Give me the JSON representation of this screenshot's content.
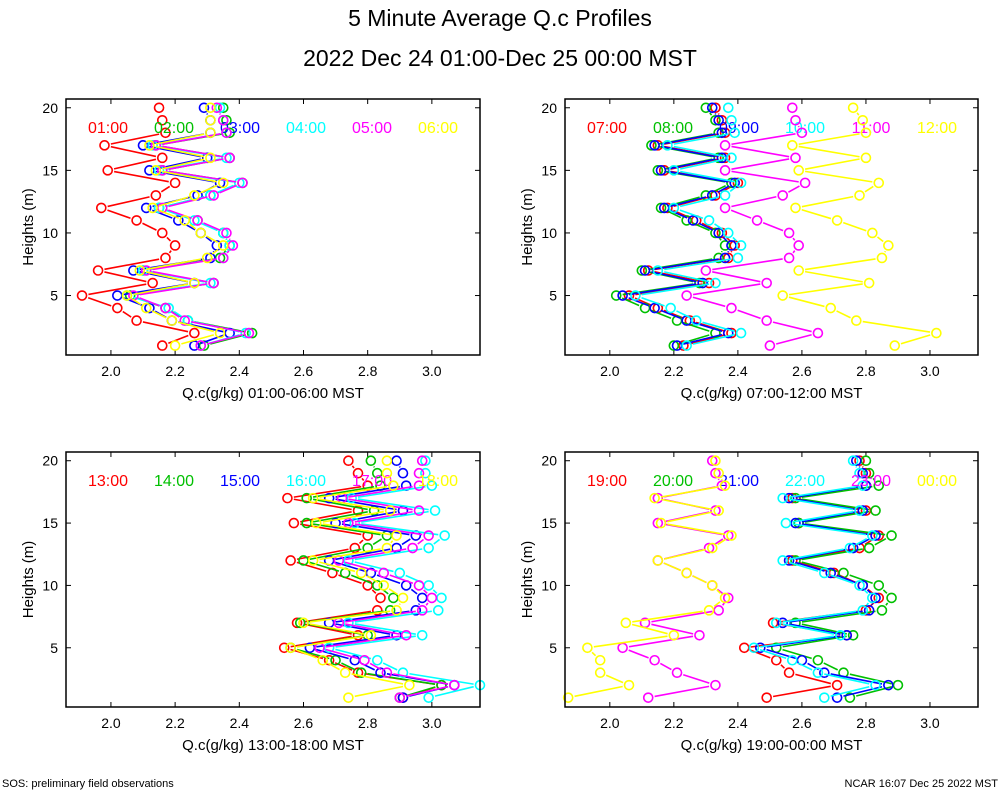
{
  "title": "5 Minute Average Q.c Profiles",
  "subtitle": "2022 Dec 24 01:00-Dec 25 00:00 MST",
  "footer": {
    "left": "SOS: preliminary field observations",
    "right": "NCAR 16:07 Dec 25 2022 MST"
  },
  "colors": [
    "#ff0000",
    "#00c000",
    "#0000ff",
    "#00ffff",
    "#ff00ff",
    "#ffff00"
  ],
  "chart_data": [
    {
      "type": "line",
      "xlabel": "Q.c(g/kg) 01:00-06:00 MST",
      "ylabel": "Heights (m)",
      "xlim": [
        1.86,
        3.15
      ],
      "ylim": [
        0.25,
        20.7
      ],
      "xticks": [
        "2.0",
        "2.2",
        "2.4",
        "2.6",
        "2.8",
        "3.0"
      ],
      "yticks": [
        "5",
        "10",
        "15",
        "20"
      ],
      "grid": false,
      "legend": "top",
      "heights": [
        1,
        2,
        3,
        4,
        5,
        6,
        7,
        8,
        9,
        10,
        11,
        12,
        13,
        14,
        15,
        16,
        17,
        18,
        19,
        20
      ],
      "series": [
        {
          "name": "01:00",
          "values": [
            2.16,
            2.26,
            2.08,
            2.02,
            1.91,
            2.13,
            1.96,
            2.17,
            2.2,
            2.16,
            2.08,
            1.97,
            2.14,
            2.2,
            1.99,
            2.16,
            1.98,
            2.17,
            2.16,
            2.15
          ]
        },
        {
          "name": "02:00",
          "values": [
            2.29,
            2.44,
            2.24,
            2.17,
            2.06,
            2.32,
            2.1,
            2.34,
            2.37,
            2.35,
            2.27,
            2.15,
            2.31,
            2.41,
            2.16,
            2.37,
            2.14,
            2.37,
            2.36,
            2.35
          ]
        },
        {
          "name": "03:00",
          "values": [
            2.26,
            2.37,
            2.19,
            2.12,
            2.02,
            2.26,
            2.07,
            2.31,
            2.33,
            2.28,
            2.21,
            2.11,
            2.27,
            2.34,
            2.12,
            2.3,
            2.1,
            2.31,
            2.31,
            2.29
          ]
        },
        {
          "name": "04:00",
          "values": [
            2.28,
            2.42,
            2.24,
            2.18,
            2.05,
            2.31,
            2.1,
            2.35,
            2.37,
            2.35,
            2.26,
            2.15,
            2.31,
            2.4,
            2.15,
            2.36,
            2.13,
            2.36,
            2.35,
            2.34
          ]
        },
        {
          "name": "05:00",
          "values": [
            2.28,
            2.43,
            2.23,
            2.17,
            2.07,
            2.32,
            2.11,
            2.35,
            2.38,
            2.36,
            2.27,
            2.16,
            2.32,
            2.41,
            2.16,
            2.37,
            2.14,
            2.36,
            2.35,
            2.33
          ]
        },
        {
          "name": "06:00",
          "values": [
            2.2,
            2.34,
            2.19,
            2.11,
            2.05,
            2.26,
            2.09,
            2.3,
            2.35,
            2.28,
            2.23,
            2.13,
            2.26,
            2.35,
            2.14,
            2.31,
            2.12,
            2.31,
            2.31,
            2.31
          ]
        }
      ]
    },
    {
      "type": "line",
      "xlabel": "Q.c(g/kg) 07:00-12:00 MST",
      "ylabel": "Heights (m)",
      "xlim": [
        1.86,
        3.15
      ],
      "ylim": [
        0.25,
        20.7
      ],
      "xticks": [
        "2.0",
        "2.2",
        "2.4",
        "2.6",
        "2.8",
        "3.0"
      ],
      "yticks": [
        "5",
        "10",
        "15",
        "20"
      ],
      "grid": false,
      "legend": "top",
      "heights": [
        1,
        2,
        3,
        4,
        5,
        6,
        7,
        8,
        9,
        10,
        11,
        12,
        13,
        14,
        15,
        16,
        17,
        18,
        19,
        20
      ],
      "series": [
        {
          "name": "07:00",
          "values": [
            2.23,
            2.38,
            2.25,
            2.15,
            2.06,
            2.31,
            2.12,
            2.37,
            2.39,
            2.35,
            2.27,
            2.18,
            2.33,
            2.4,
            2.17,
            2.36,
            2.15,
            2.36,
            2.35,
            2.33
          ]
        },
        {
          "name": "08:00",
          "values": [
            2.2,
            2.33,
            2.21,
            2.11,
            2.02,
            2.28,
            2.1,
            2.34,
            2.36,
            2.33,
            2.24,
            2.16,
            2.3,
            2.38,
            2.15,
            2.34,
            2.13,
            2.34,
            2.33,
            2.3
          ]
        },
        {
          "name": "09:00",
          "values": [
            2.21,
            2.37,
            2.24,
            2.14,
            2.04,
            2.29,
            2.11,
            2.36,
            2.38,
            2.34,
            2.26,
            2.17,
            2.32,
            2.39,
            2.16,
            2.35,
            2.14,
            2.35,
            2.34,
            2.32
          ]
        },
        {
          "name": "10:00",
          "values": [
            2.24,
            2.41,
            2.27,
            2.19,
            2.08,
            2.33,
            2.15,
            2.4,
            2.41,
            2.37,
            2.31,
            2.2,
            2.36,
            2.41,
            2.2,
            2.38,
            2.18,
            2.39,
            2.38,
            2.37
          ]
        },
        {
          "name": "11:00",
          "values": [
            2.5,
            2.65,
            2.49,
            2.38,
            2.24,
            2.49,
            2.3,
            2.56,
            2.59,
            2.56,
            2.46,
            2.36,
            2.54,
            2.61,
            2.36,
            2.58,
            2.36,
            2.6,
            2.58,
            2.57
          ]
        },
        {
          "name": "12:00",
          "values": [
            2.89,
            3.02,
            2.77,
            2.69,
            2.54,
            2.81,
            2.59,
            2.85,
            2.87,
            2.82,
            2.71,
            2.58,
            2.78,
            2.84,
            2.59,
            2.8,
            2.57,
            2.8,
            2.79,
            2.76
          ]
        }
      ]
    },
    {
      "type": "line",
      "xlabel": "Q.c(g/kg) 13:00-18:00 MST",
      "ylabel": "Heights (m)",
      "xlim": [
        1.86,
        3.15
      ],
      "ylim": [
        0.25,
        20.7
      ],
      "xticks": [
        "2.0",
        "2.2",
        "2.4",
        "2.6",
        "2.8",
        "3.0"
      ],
      "yticks": [
        "5",
        "10",
        "15",
        "20"
      ],
      "grid": false,
      "legend": "top",
      "heights": [
        1,
        2,
        3,
        4,
        5,
        6,
        7,
        8,
        9,
        10,
        11,
        12,
        13,
        14,
        15,
        16,
        17,
        18,
        19,
        20
      ],
      "series": [
        {
          "name": "13:00",
          "values": [
            2.91,
            3.03,
            2.77,
            2.68,
            2.54,
            2.77,
            2.58,
            2.83,
            2.84,
            2.8,
            2.69,
            2.56,
            2.76,
            2.8,
            2.57,
            2.77,
            2.55,
            2.8,
            2.77,
            2.74
          ]
        },
        {
          "name": "14:00",
          "values": [
            2.9,
            3.03,
            2.78,
            2.7,
            2.56,
            2.8,
            2.59,
            2.87,
            2.88,
            2.83,
            2.73,
            2.6,
            2.8,
            2.86,
            2.61,
            2.82,
            2.61,
            2.84,
            2.83,
            2.81
          ]
        },
        {
          "name": "15:00",
          "values": [
            2.91,
            3.07,
            2.84,
            2.76,
            2.62,
            2.89,
            2.68,
            2.95,
            2.97,
            2.92,
            2.81,
            2.68,
            2.89,
            2.95,
            2.7,
            2.91,
            2.68,
            2.92,
            2.91,
            2.89
          ]
        },
        {
          "name": "16:00",
          "values": [
            2.99,
            3.15,
            2.91,
            2.83,
            2.68,
            2.97,
            2.74,
            3.02,
            3.03,
            2.99,
            2.9,
            2.74,
            2.99,
            3.04,
            2.76,
            3.01,
            2.75,
            3.0,
            2.98,
            2.98
          ]
        },
        {
          "name": "17:00",
          "values": [
            2.9,
            3.07,
            2.86,
            2.79,
            2.65,
            2.92,
            2.71,
            2.97,
            3.0,
            2.96,
            2.85,
            2.71,
            2.94,
            2.99,
            2.74,
            2.96,
            2.72,
            2.96,
            2.96,
            2.97
          ]
        },
        {
          "name": "18:00",
          "values": [
            2.74,
            2.93,
            2.73,
            2.66,
            2.56,
            2.81,
            2.6,
            2.89,
            2.91,
            2.85,
            2.78,
            2.63,
            2.86,
            2.89,
            2.64,
            2.87,
            2.63,
            2.88,
            2.86,
            2.86
          ]
        }
      ]
    },
    {
      "type": "line",
      "xlabel": "Q.c(g/kg) 19:00-00:00 MST",
      "ylabel": "Heights (m)",
      "xlim": [
        1.86,
        3.15
      ],
      "ylim": [
        0.25,
        20.7
      ],
      "xticks": [
        "2.0",
        "2.2",
        "2.4",
        "2.6",
        "2.8",
        "3.0"
      ],
      "yticks": [
        "5",
        "10",
        "15",
        "20"
      ],
      "grid": false,
      "legend": "top",
      "heights": [
        1,
        2,
        3,
        4,
        5,
        6,
        7,
        8,
        9,
        10,
        11,
        12,
        13,
        14,
        15,
        16,
        17,
        18,
        19,
        20
      ],
      "series": [
        {
          "name": "19:00",
          "values": [
            2.49,
            2.71,
            2.56,
            2.52,
            2.42,
            2.74,
            2.51,
            2.8,
            2.84,
            2.79,
            2.7,
            2.57,
            2.78,
            2.84,
            2.59,
            2.8,
            2.57,
            2.8,
            2.8,
            2.78
          ]
        },
        {
          "name": "20:00",
          "values": [
            2.75,
            2.9,
            2.73,
            2.65,
            2.52,
            2.76,
            2.58,
            2.85,
            2.88,
            2.84,
            2.73,
            2.58,
            2.81,
            2.88,
            2.59,
            2.83,
            2.58,
            2.84,
            2.81,
            2.8
          ]
        },
        {
          "name": "21:00",
          "values": [
            2.71,
            2.87,
            2.67,
            2.6,
            2.47,
            2.74,
            2.54,
            2.81,
            2.83,
            2.79,
            2.69,
            2.56,
            2.76,
            2.83,
            2.58,
            2.79,
            2.56,
            2.8,
            2.79,
            2.77
          ]
        },
        {
          "name": "22:00",
          "values": [
            2.67,
            2.83,
            2.65,
            2.57,
            2.45,
            2.72,
            2.52,
            2.79,
            2.82,
            2.78,
            2.67,
            2.54,
            2.75,
            2.82,
            2.55,
            2.78,
            2.54,
            2.79,
            2.78,
            2.76
          ]
        },
        {
          "name": "23:00",
          "values": [
            2.12,
            2.33,
            2.21,
            2.14,
            2.04,
            2.28,
            2.11,
            2.34,
            2.37,
            2.32,
            2.24,
            2.15,
            2.31,
            2.37,
            2.15,
            2.33,
            2.15,
            2.35,
            2.33,
            2.32
          ]
        },
        {
          "name": "00:00",
          "values": [
            1.87,
            2.06,
            1.97,
            1.97,
            1.93,
            2.2,
            2.05,
            2.31,
            2.36,
            2.32,
            2.24,
            2.15,
            2.32,
            2.38,
            2.16,
            2.34,
            2.14,
            2.36,
            2.34,
            2.33
          ]
        }
      ]
    }
  ]
}
